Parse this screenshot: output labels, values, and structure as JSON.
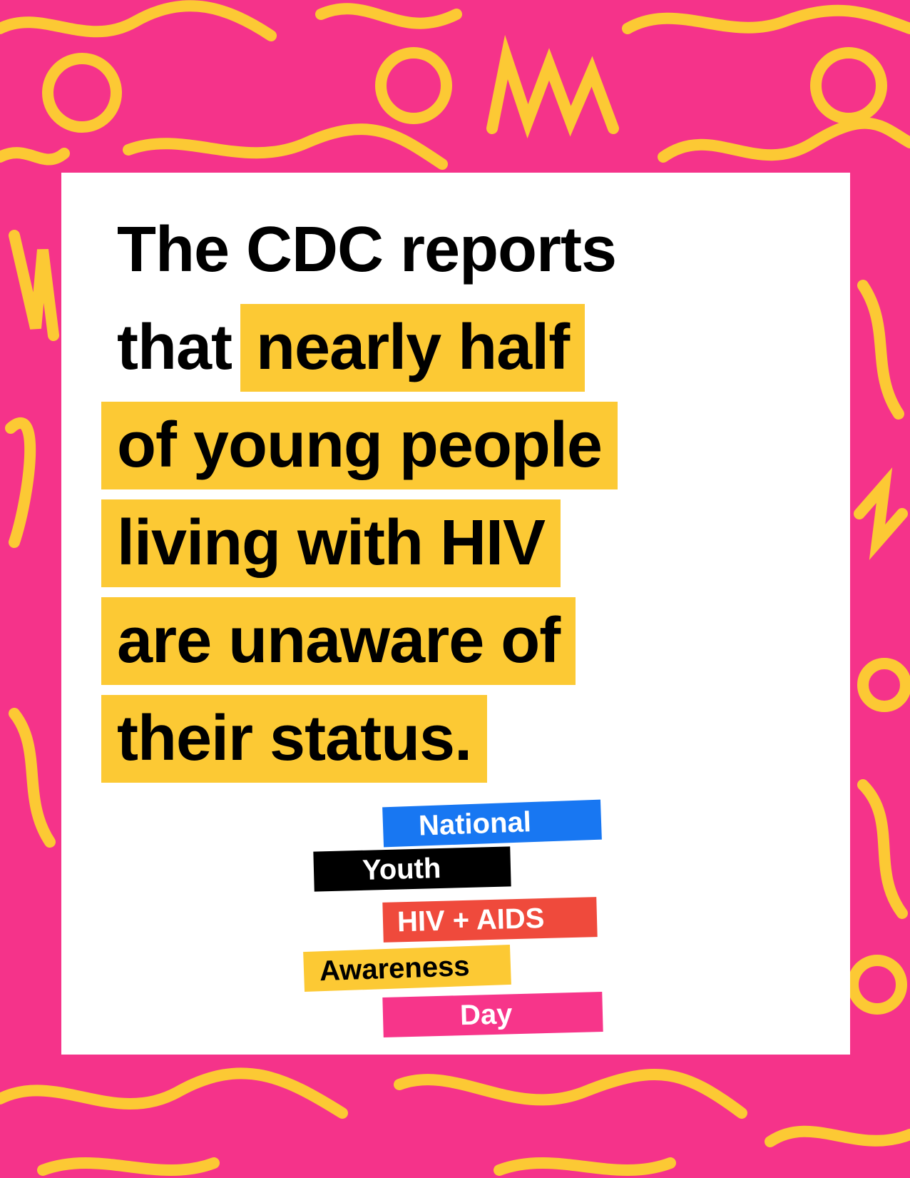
{
  "headline": {
    "lines": [
      [
        {
          "text": "The CDC reports",
          "highlight": false
        }
      ],
      [
        {
          "text": "that",
          "highlight": false
        },
        {
          "text": "nearly half",
          "highlight": true
        }
      ],
      [
        {
          "text": "of young people",
          "highlight": true
        }
      ],
      [
        {
          "text": "living with HIV",
          "highlight": true
        }
      ],
      [
        {
          "text": "are unaware of",
          "highlight": true
        }
      ],
      [
        {
          "text": "their status.",
          "highlight": true
        }
      ]
    ]
  },
  "logo": {
    "lines": [
      {
        "text": "National",
        "color": "#1877f2",
        "text_color": "#ffffff"
      },
      {
        "text": "Youth",
        "color": "#000000",
        "text_color": "#ffffff"
      },
      {
        "text": "HIV + AIDS",
        "color": "#ef4a3c",
        "text_color": "#ffffff"
      },
      {
        "text": "Awareness",
        "color": "#fcc934",
        "text_color": "#000000"
      },
      {
        "text": "Day",
        "color": "#f7358a",
        "text_color": "#ffffff"
      }
    ]
  }
}
